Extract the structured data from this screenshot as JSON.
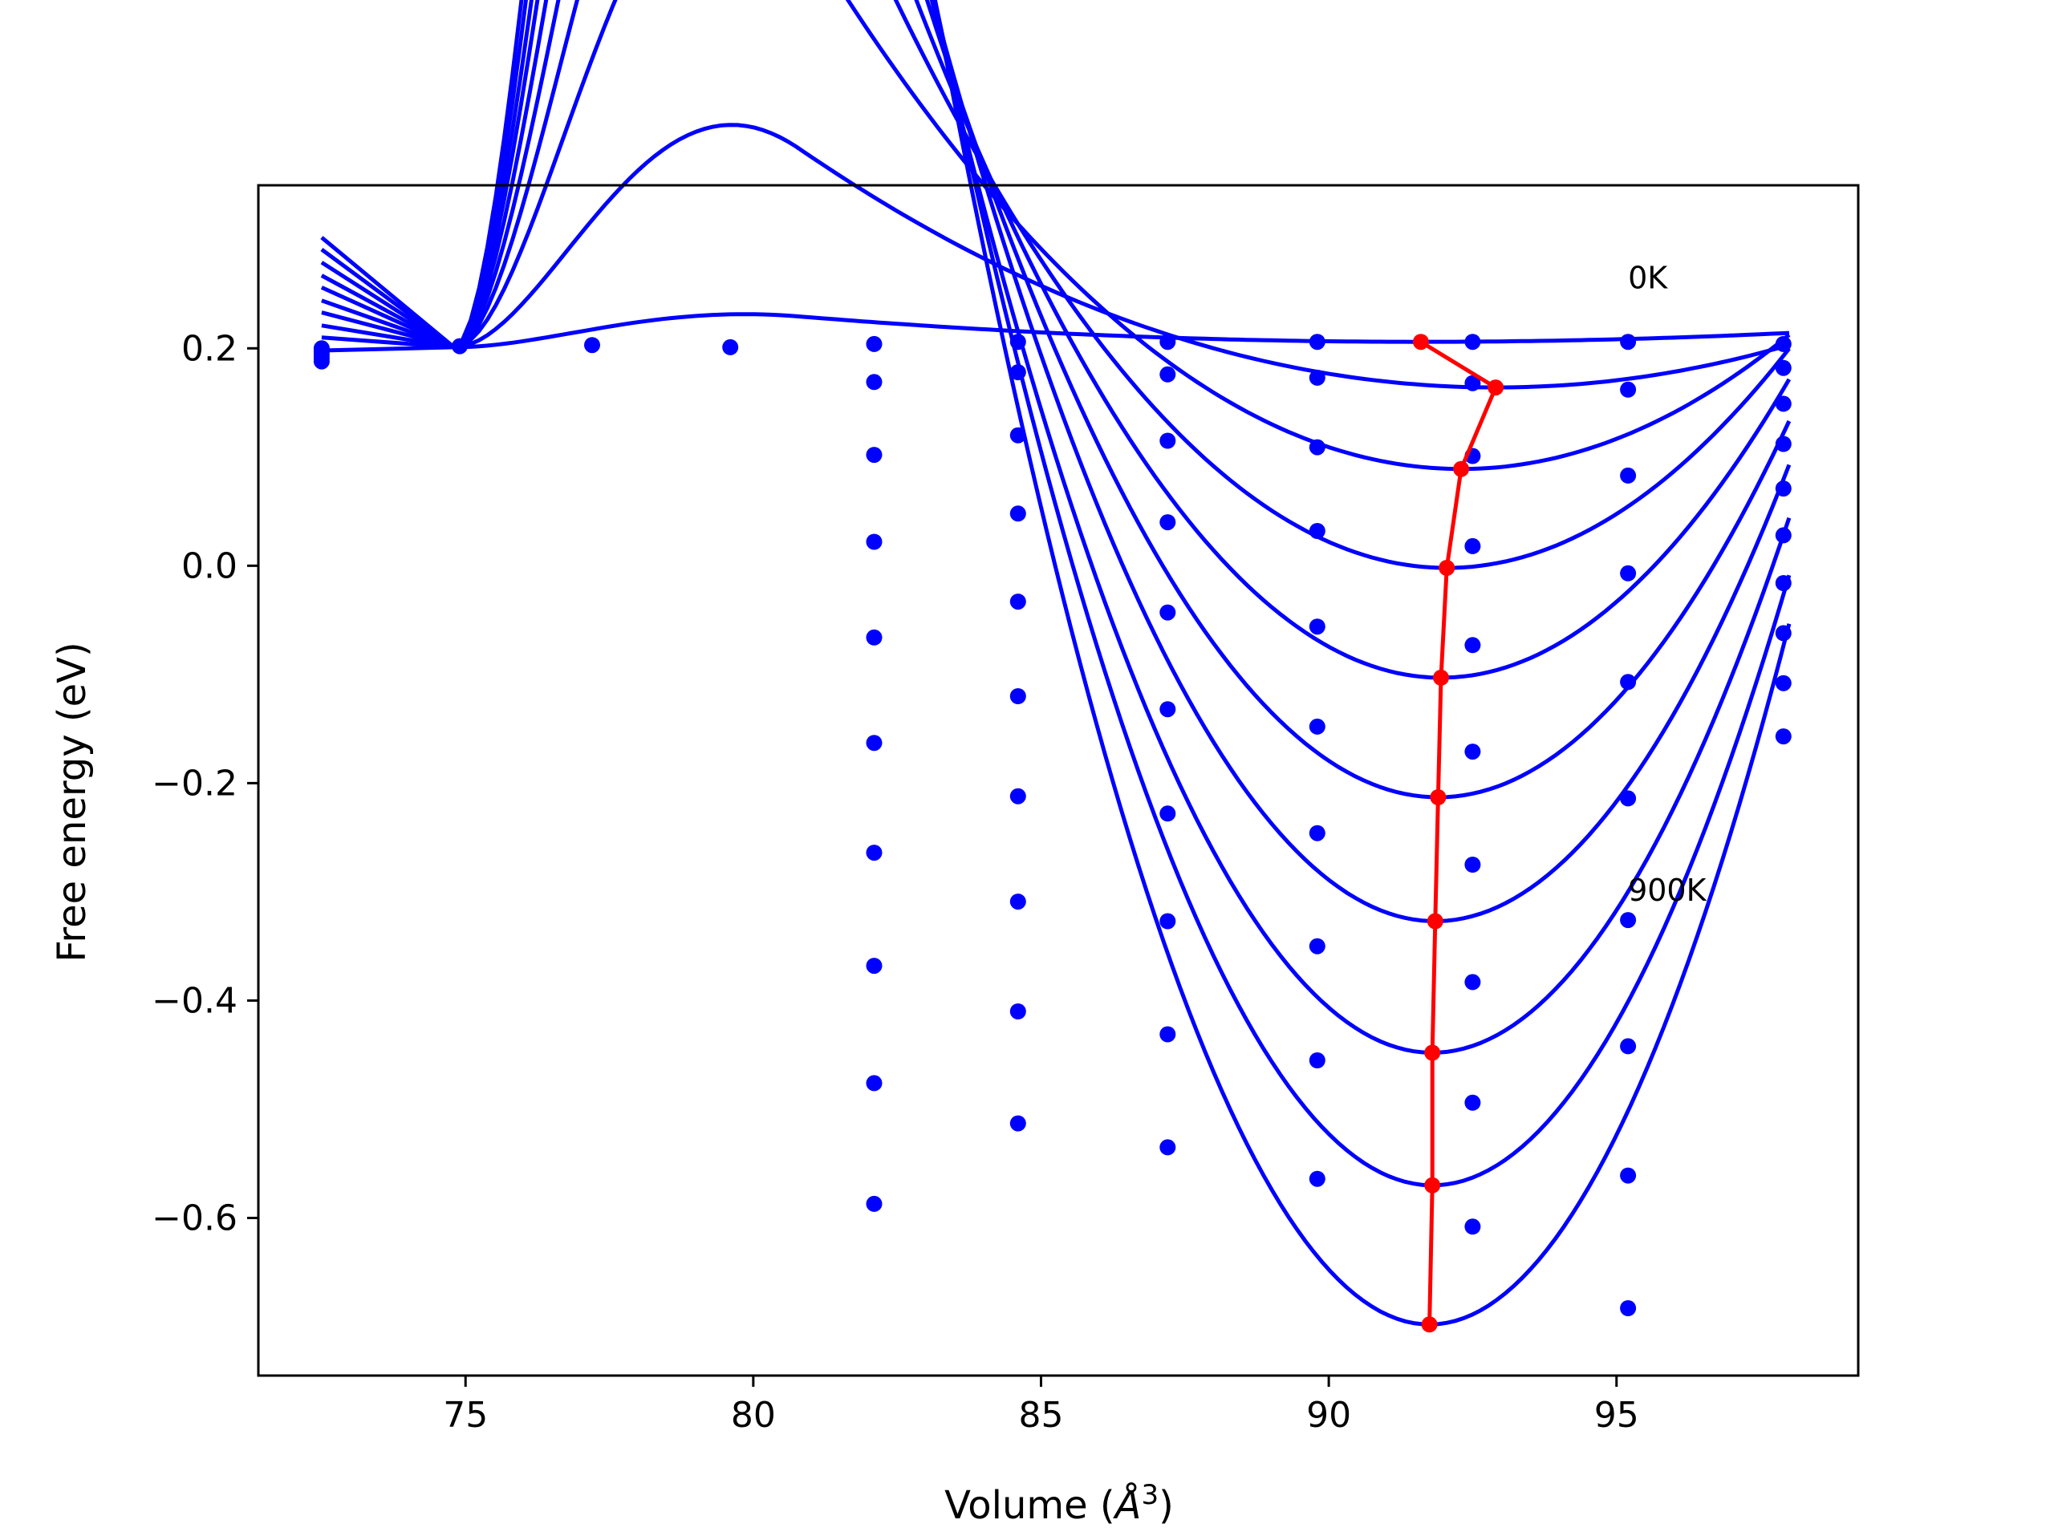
{
  "chart_data": {
    "type": "line",
    "title": "",
    "xlabel_main": "Volume (",
    "xlabel_unit": "Å",
    "xlabel_sup": "3",
    "xlabel_close": ")",
    "ylabel": "Free energy (eV)",
    "xlim": [
      71.4,
      99.2
    ],
    "ylim": [
      -0.745,
      0.35
    ],
    "x_ticks": [
      75,
      80,
      85,
      90,
      95
    ],
    "x_tick_labels": [
      "75",
      "80",
      "85",
      "90",
      "95"
    ],
    "y_ticks": [
      0.2,
      0.0,
      -0.2,
      -0.4,
      -0.6
    ],
    "y_tick_labels": [
      "0.2",
      "0.0",
      "−0.2",
      "−0.4",
      "−0.6"
    ],
    "grid": false,
    "annotations": [
      {
        "text": "0K",
        "x": 95.2,
        "y": 0.255
      },
      {
        "text": "900K",
        "x": 95.2,
        "y": -0.308
      }
    ],
    "colors": {
      "fit": "#0000ff",
      "points": "#0000ff",
      "minimum": "#ff0000",
      "frame": "#000000"
    },
    "fit_curves": [
      {
        "v0": 91.6,
        "f0": 0.206,
        "b": 0.0002,
        "fstart": 0.198
      },
      {
        "v0": 92.9,
        "f0": 0.164,
        "b": 0.0015,
        "fstart": 0.21
      },
      {
        "v0": 92.3,
        "f0": 0.089,
        "b": 0.0038,
        "fstart": 0.221
      },
      {
        "v0": 92.05,
        "f0": -0.002,
        "b": 0.0057,
        "fstart": 0.233
      },
      {
        "v0": 91.95,
        "f0": -0.103,
        "b": 0.0075,
        "fstart": 0.244
      },
      {
        "v0": 91.9,
        "f0": -0.213,
        "b": 0.0093,
        "fstart": 0.256
      },
      {
        "v0": 91.85,
        "f0": -0.327,
        "b": 0.0111,
        "fstart": 0.267
      },
      {
        "v0": 91.8,
        "f0": -0.448,
        "b": 0.0128,
        "fstart": 0.279
      },
      {
        "v0": 91.8,
        "f0": -0.57,
        "b": 0.0146,
        "fstart": 0.291
      },
      {
        "v0": 91.75,
        "f0": -0.698,
        "b": 0.0165,
        "fstart": 0.302
      }
    ],
    "data_points": [
      {
        "x": 72.5,
        "y": 0.2
      },
      {
        "x": 72.5,
        "y": 0.197
      },
      {
        "x": 72.5,
        "y": 0.194
      },
      {
        "x": 72.5,
        "y": 0.191
      },
      {
        "x": 72.5,
        "y": 0.188
      },
      {
        "x": 74.9,
        "y": 0.202
      },
      {
        "x": 77.2,
        "y": 0.203
      },
      {
        "x": 79.6,
        "y": 0.201
      },
      {
        "x": 82.1,
        "y": 0.204
      },
      {
        "x": 82.1,
        "y": 0.169
      },
      {
        "x": 82.1,
        "y": 0.102
      },
      {
        "x": 82.1,
        "y": 0.022
      },
      {
        "x": 82.1,
        "y": -0.066
      },
      {
        "x": 82.1,
        "y": -0.163
      },
      {
        "x": 82.1,
        "y": -0.264
      },
      {
        "x": 82.1,
        "y": -0.368
      },
      {
        "x": 82.1,
        "y": -0.476
      },
      {
        "x": 82.1,
        "y": -0.587
      },
      {
        "x": 84.6,
        "y": 0.206
      },
      {
        "x": 84.6,
        "y": 0.178
      },
      {
        "x": 84.6,
        "y": 0.12
      },
      {
        "x": 84.6,
        "y": 0.048
      },
      {
        "x": 84.6,
        "y": -0.033
      },
      {
        "x": 84.6,
        "y": -0.12
      },
      {
        "x": 84.6,
        "y": -0.212
      },
      {
        "x": 84.6,
        "y": -0.309
      },
      {
        "x": 84.6,
        "y": -0.41
      },
      {
        "x": 84.6,
        "y": -0.513
      },
      {
        "x": 87.2,
        "y": 0.206
      },
      {
        "x": 87.2,
        "y": 0.176
      },
      {
        "x": 87.2,
        "y": 0.115
      },
      {
        "x": 87.2,
        "y": 0.04
      },
      {
        "x": 87.2,
        "y": -0.043
      },
      {
        "x": 87.2,
        "y": -0.132
      },
      {
        "x": 87.2,
        "y": -0.228
      },
      {
        "x": 87.2,
        "y": -0.327
      },
      {
        "x": 87.2,
        "y": -0.431
      },
      {
        "x": 87.2,
        "y": -0.535
      },
      {
        "x": 89.8,
        "y": 0.206
      },
      {
        "x": 89.8,
        "y": 0.173
      },
      {
        "x": 89.8,
        "y": 0.109
      },
      {
        "x": 89.8,
        "y": 0.032
      },
      {
        "x": 89.8,
        "y": -0.056
      },
      {
        "x": 89.8,
        "y": -0.148
      },
      {
        "x": 89.8,
        "y": -0.246
      },
      {
        "x": 89.8,
        "y": -0.35
      },
      {
        "x": 89.8,
        "y": -0.455
      },
      {
        "x": 89.8,
        "y": -0.564
      },
      {
        "x": 92.5,
        "y": 0.206
      },
      {
        "x": 92.5,
        "y": 0.168
      },
      {
        "x": 92.5,
        "y": 0.101
      },
      {
        "x": 92.5,
        "y": 0.018
      },
      {
        "x": 92.5,
        "y": -0.073
      },
      {
        "x": 92.5,
        "y": -0.171
      },
      {
        "x": 92.5,
        "y": -0.275
      },
      {
        "x": 92.5,
        "y": -0.383
      },
      {
        "x": 92.5,
        "y": -0.494
      },
      {
        "x": 92.5,
        "y": -0.608
      },
      {
        "x": 95.2,
        "y": 0.206
      },
      {
        "x": 95.2,
        "y": 0.162
      },
      {
        "x": 95.2,
        "y": 0.083
      },
      {
        "x": 95.2,
        "y": -0.007
      },
      {
        "x": 95.2,
        "y": -0.107
      },
      {
        "x": 95.2,
        "y": -0.214
      },
      {
        "x": 95.2,
        "y": -0.326
      },
      {
        "x": 95.2,
        "y": -0.442
      },
      {
        "x": 95.2,
        "y": -0.561
      },
      {
        "x": 95.2,
        "y": -0.683
      },
      {
        "x": 97.9,
        "y": 0.204
      },
      {
        "x": 97.9,
        "y": 0.182
      },
      {
        "x": 97.9,
        "y": 0.149
      },
      {
        "x": 97.9,
        "y": 0.112
      },
      {
        "x": 97.9,
        "y": 0.071
      },
      {
        "x": 97.9,
        "y": 0.028
      },
      {
        "x": 97.9,
        "y": -0.016
      },
      {
        "x": 97.9,
        "y": -0.062
      },
      {
        "x": 97.9,
        "y": -0.108
      },
      {
        "x": 97.9,
        "y": -0.157
      }
    ],
    "minimum_path": [
      {
        "x": 91.6,
        "y": 0.206
      },
      {
        "x": 92.9,
        "y": 0.164
      },
      {
        "x": 92.3,
        "y": 0.089
      },
      {
        "x": 92.05,
        "y": -0.002
      },
      {
        "x": 91.95,
        "y": -0.103
      },
      {
        "x": 91.9,
        "y": -0.213
      },
      {
        "x": 91.85,
        "y": -0.327
      },
      {
        "x": 91.8,
        "y": -0.448
      },
      {
        "x": 91.8,
        "y": -0.57
      },
      {
        "x": 91.75,
        "y": -0.698
      }
    ]
  }
}
